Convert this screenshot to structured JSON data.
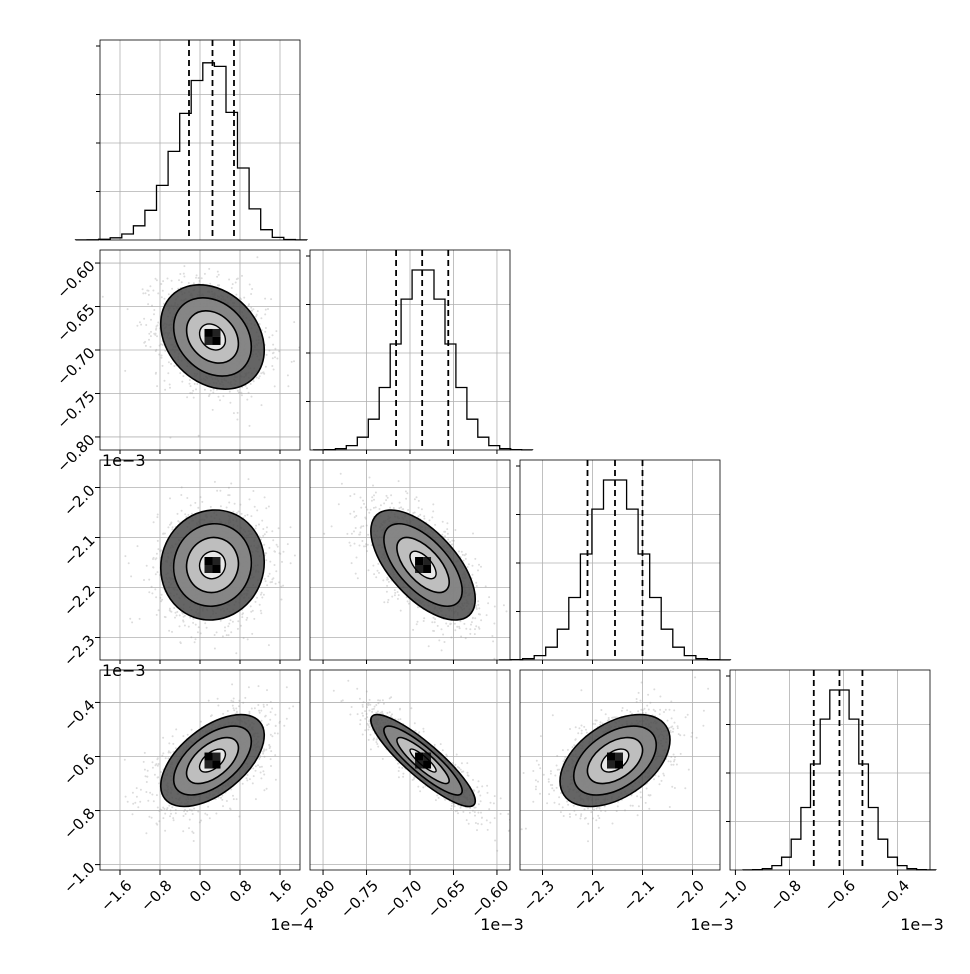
{
  "chart_data": {
    "type": "corner",
    "parameters": [
      {
        "range": [
          -2.0,
          2.0
        ],
        "ticks": [
          -1.6,
          -0.8,
          0.0,
          0.8,
          1.6
        ],
        "tick_labels": [
          "−1.6",
          "−0.8",
          "0.0",
          "0.8",
          "1.6"
        ],
        "scale_label": "1e−4",
        "mean": 0.25,
        "sd": 0.45,
        "quantiles": [
          -0.22,
          0.25,
          0.68
        ],
        "skew": -1
      },
      {
        "range": [
          -0.815,
          -0.585
        ],
        "ticks": [
          -0.8,
          -0.75,
          -0.7,
          -0.65,
          -0.6
        ],
        "tick_labels": [
          "−0.80",
          "−0.75",
          "−0.70",
          "−0.65",
          "−0.60"
        ],
        "scale_label": "1e−3",
        "mean": -0.685,
        "sd": 0.03,
        "quantiles": [
          -0.716,
          -0.686,
          -0.656
        ],
        "skew": 0
      },
      {
        "range": [
          -2.345,
          -1.945
        ],
        "ticks": [
          -2.3,
          -2.2,
          -2.1,
          -2.0
        ],
        "tick_labels": [
          "−2.3",
          "−2.2",
          "−2.1",
          "−2.0"
        ],
        "scale_label": "1e−3",
        "mean": -2.155,
        "sd": 0.055,
        "quantiles": [
          -2.21,
          -2.155,
          -2.1
        ],
        "skew": 0
      },
      {
        "range": [
          -1.02,
          -0.28
        ],
        "ticks": [
          -1.0,
          -0.8,
          -0.6,
          -0.4
        ],
        "tick_labels": [
          "−1.0",
          "−0.8",
          "−0.6",
          "−0.4"
        ],
        "scale_label": "1e−3",
        "mean": -0.615,
        "sd": 0.085,
        "quantiles": [
          -0.71,
          -0.615,
          -0.53
        ],
        "skew": 0
      }
    ],
    "correlations": {
      "1-0": -0.25,
      "2-0": 0.05,
      "2-1": -0.62,
      "3-0": 0.55,
      "3-1": -0.88,
      "3-2": 0.45
    },
    "contour_levels": [
      0.5,
      1.0,
      1.5,
      2.0
    ],
    "grid": true,
    "colors": {
      "scatter": "#9a9a9a",
      "line": "#000000",
      "grid": "#b0b0b0"
    }
  }
}
